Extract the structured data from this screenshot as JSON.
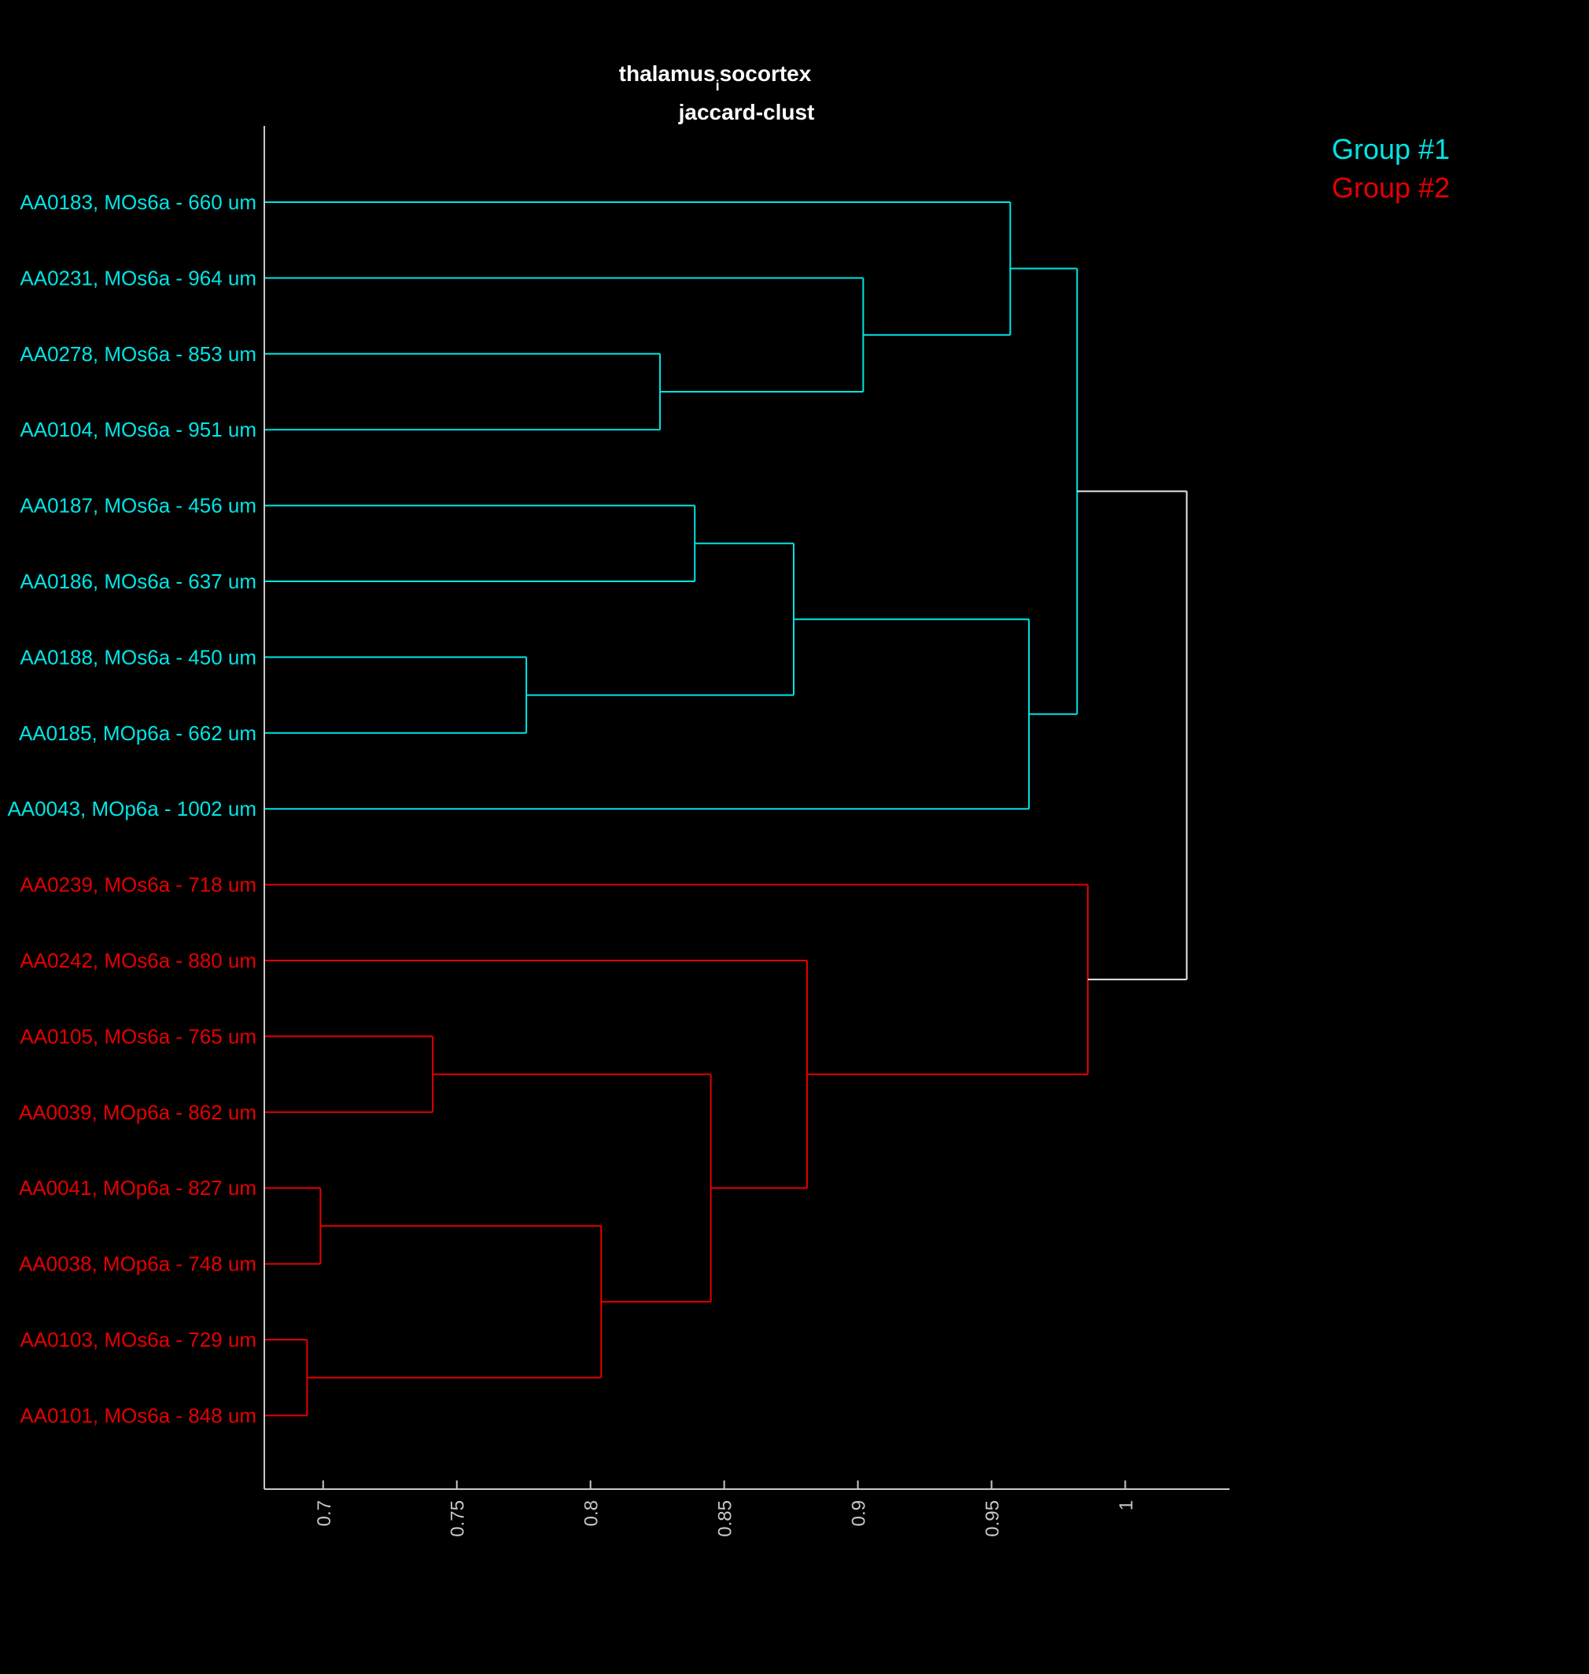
{
  "chart_data": {
    "type": "dendrogram",
    "title": {
      "prefix": "thalamus",
      "subscript": "i",
      "suffix": "socortex",
      "line2": "jaccard-clust"
    },
    "orientation": "horizontal",
    "xlim": [
      0.678,
      1.039
    ],
    "xticks": [
      {
        "value": 0.7,
        "label": "0.7"
      },
      {
        "value": 0.75,
        "label": "0.75"
      },
      {
        "value": 0.8,
        "label": "0.8"
      },
      {
        "value": 0.85,
        "label": "0.85"
      },
      {
        "value": 0.9,
        "label": "0.9"
      },
      {
        "value": 0.95,
        "label": "0.95"
      },
      {
        "value": 1,
        "label": "1"
      }
    ],
    "leaves": [
      {
        "label": "AA0183, MOs6a - 660 um",
        "group": "g1"
      },
      {
        "label": "AA0231, MOs6a - 964 um",
        "group": "g1"
      },
      {
        "label": "AA0278, MOs6a - 853 um",
        "group": "g1"
      },
      {
        "label": "AA0104, MOs6a - 951 um",
        "group": "g1"
      },
      {
        "label": "AA0187, MOs6a - 456 um",
        "group": "g1"
      },
      {
        "label": "AA0186, MOs6a - 637 um",
        "group": "g1"
      },
      {
        "label": "AA0188, MOs6a - 450 um",
        "group": "g1"
      },
      {
        "label": "AA0185, MOp6a - 662 um",
        "group": "g1"
      },
      {
        "label": "AA0043, MOp6a - 1002 um",
        "group": "g1"
      },
      {
        "label": "AA0239, MOs6a - 718 um",
        "group": "g2"
      },
      {
        "label": "AA0242, MOs6a - 880 um",
        "group": "g2"
      },
      {
        "label": "AA0105, MOs6a - 765 um",
        "group": "g2"
      },
      {
        "label": "AA0039, MOp6a - 862 um",
        "group": "g2"
      },
      {
        "label": "AA0041, MOp6a - 827 um",
        "group": "g2"
      },
      {
        "label": "AA0038, MOp6a - 748 um",
        "group": "g2"
      },
      {
        "label": "AA0103, MOs6a - 729 um",
        "group": "g2"
      },
      {
        "label": "AA0101, MOs6a - 848 um",
        "group": "g2"
      }
    ],
    "merges": [
      {
        "id": "A",
        "left": 2,
        "right": 3,
        "height": 0.826,
        "group": "g1"
      },
      {
        "id": "B",
        "left": 1,
        "right": "A",
        "height": 0.902,
        "group": "g1"
      },
      {
        "id": "C",
        "left": 0,
        "right": "B",
        "height": 0.957,
        "group": "g1"
      },
      {
        "id": "D",
        "left": 4,
        "right": 5,
        "height": 0.839,
        "group": "g1"
      },
      {
        "id": "E",
        "left": 6,
        "right": 7,
        "height": 0.776,
        "group": "g1"
      },
      {
        "id": "F",
        "left": "D",
        "right": "E",
        "height": 0.876,
        "group": "g1"
      },
      {
        "id": "G",
        "left": "F",
        "right": 8,
        "height": 0.964,
        "group": "g1"
      },
      {
        "id": "H",
        "left": "C",
        "right": "G",
        "height": 0.982,
        "group": "g1"
      },
      {
        "id": "I",
        "left": 11,
        "right": 12,
        "height": 0.741,
        "group": "g2"
      },
      {
        "id": "J",
        "left": 13,
        "right": 14,
        "height": 0.699,
        "group": "g2"
      },
      {
        "id": "K",
        "left": 15,
        "right": 16,
        "height": 0.694,
        "group": "g2"
      },
      {
        "id": "L",
        "left": "J",
        "right": "K",
        "height": 0.804,
        "group": "g2"
      },
      {
        "id": "M",
        "left": "I",
        "right": "L",
        "height": 0.845,
        "group": "g2"
      },
      {
        "id": "N",
        "left": 10,
        "right": "M",
        "height": 0.881,
        "group": "g2"
      },
      {
        "id": "O",
        "left": 9,
        "right": "N",
        "height": 0.986,
        "group": "g2"
      },
      {
        "id": "P",
        "left": "H",
        "right": "O",
        "height": 1.023,
        "group": "root"
      }
    ],
    "groups": {
      "g1": {
        "name": "Group #1",
        "color": "#00e5e5"
      },
      "g2": {
        "name": "Group #2",
        "color": "#e50000"
      },
      "root": {
        "color": "#e6e6e6"
      }
    },
    "axis_color": "#c8c8c8",
    "legend_position": "top-right",
    "grid": false
  }
}
